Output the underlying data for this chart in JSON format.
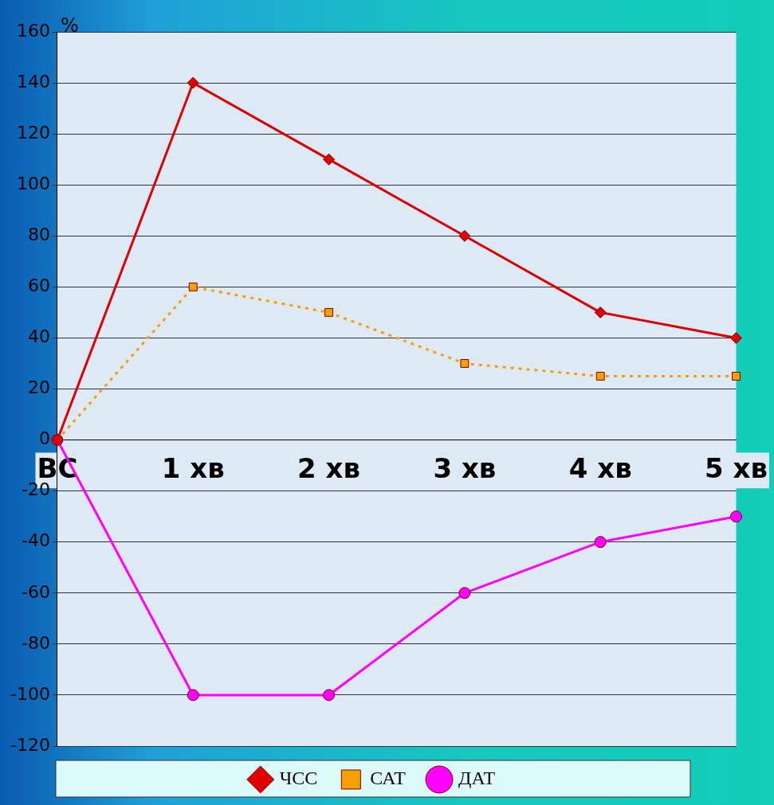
{
  "chart_data": {
    "type": "line",
    "ylabel": "%",
    "categories": [
      "ВС",
      "1 хв",
      "2 хв",
      "3 хв",
      "4 хв",
      "5 хв"
    ],
    "series": [
      {
        "name": "ЧСС",
        "color": "#e00000",
        "marker": "diamond",
        "line_style": "solid",
        "values": [
          0,
          140,
          110,
          80,
          50,
          40
        ]
      },
      {
        "name": "САТ",
        "color": "#f5a000",
        "marker": "square",
        "line_style": "dotted",
        "values": [
          0,
          60,
          50,
          30,
          25,
          25
        ]
      },
      {
        "name": "ДАТ",
        "color": "#ff00ff",
        "marker": "circle",
        "line_style": "solid",
        "values": [
          0,
          -100,
          -100,
          -60,
          -40,
          -30
        ]
      }
    ],
    "ylim": [
      -120,
      160
    ],
    "yticks": [
      -120,
      -100,
      -80,
      -60,
      -40,
      -20,
      0,
      20,
      40,
      60,
      80,
      100,
      120,
      140,
      160
    ],
    "grid": "y",
    "legend": "bottom"
  }
}
